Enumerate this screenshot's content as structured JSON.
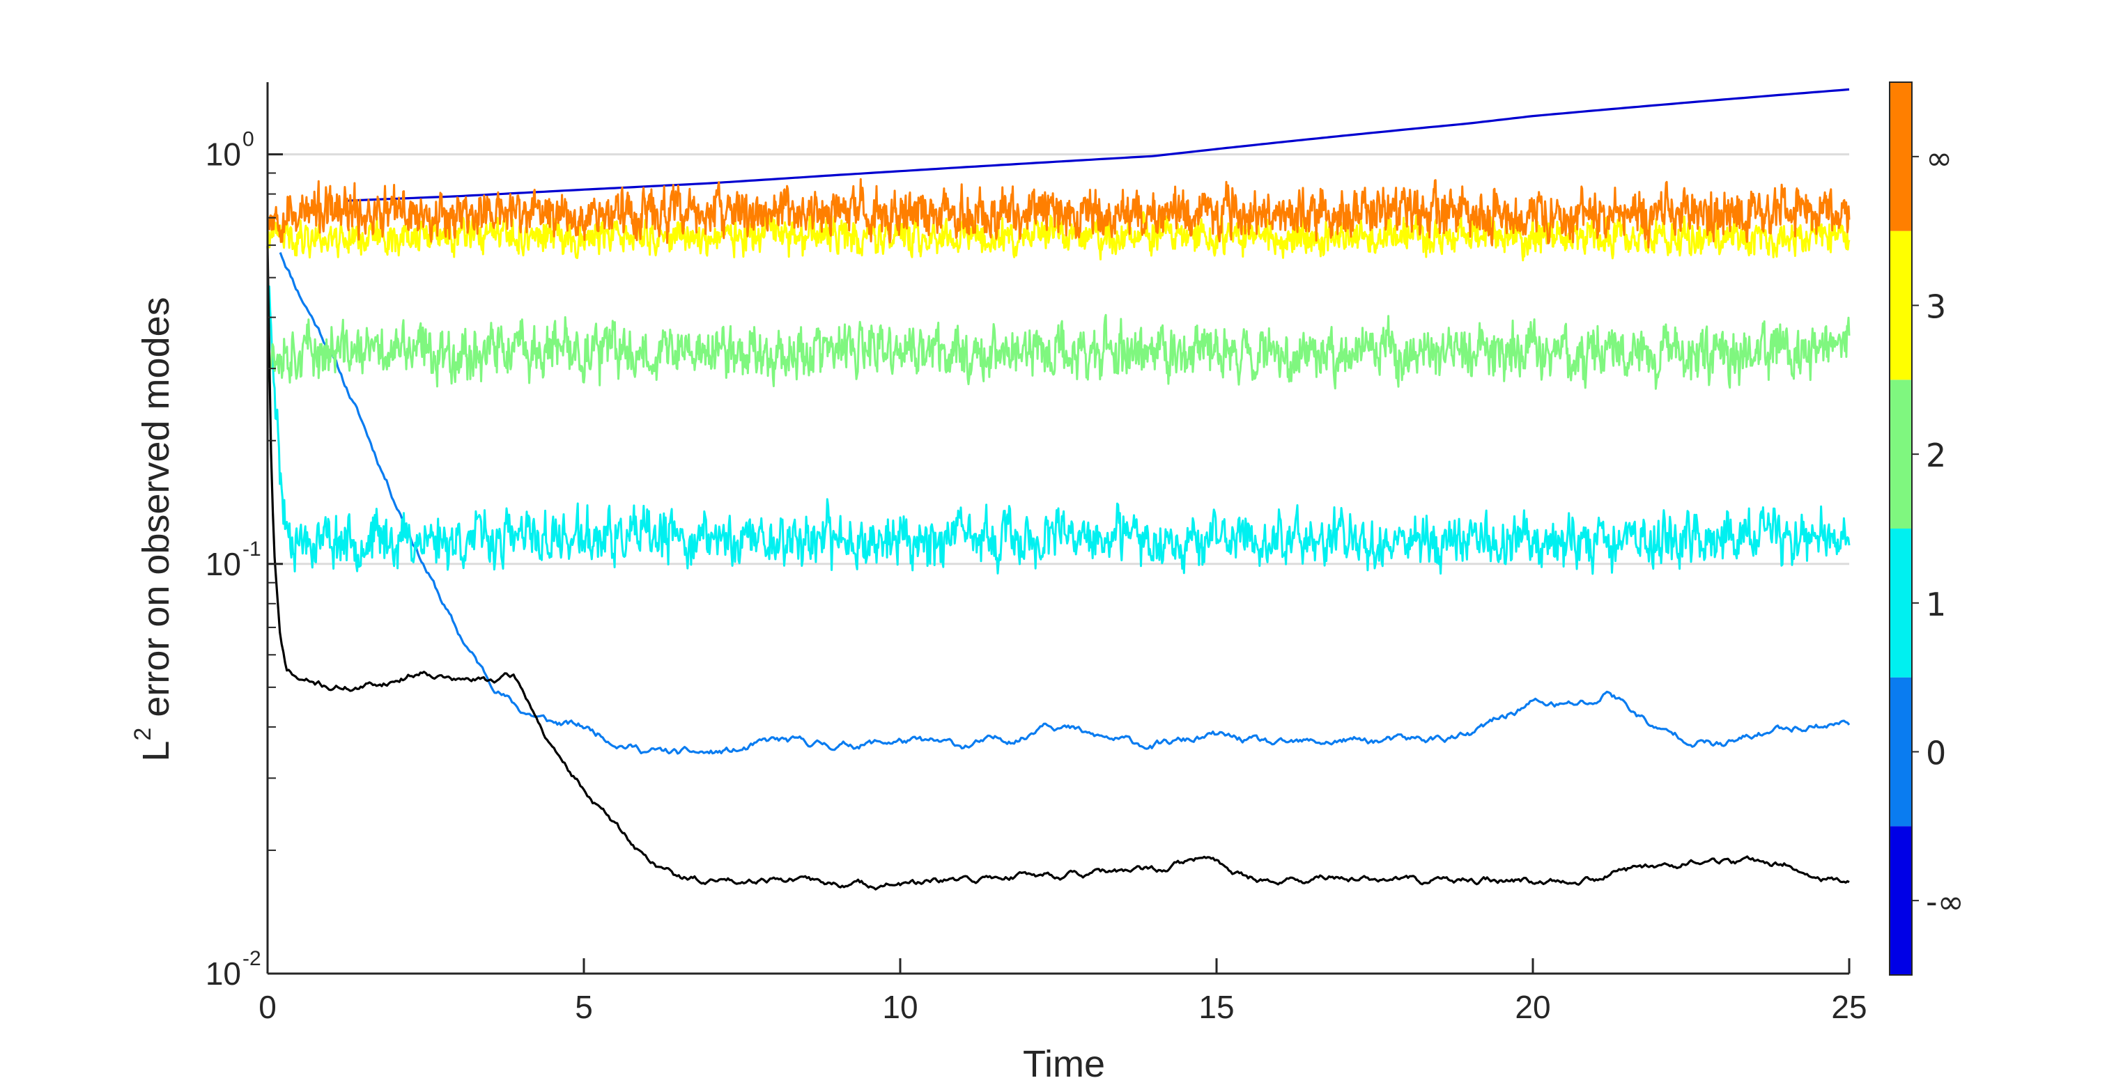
{
  "chart_data": {
    "type": "line",
    "title": "",
    "xlabel": "Time",
    "ylabel": "L² error on observed modes",
    "ylabel_base": "L",
    "ylabel_sup": "2",
    "ylabel_rest": " error on observed modes",
    "x_scale": "linear",
    "y_scale": "log",
    "xlim": [
      0,
      25
    ],
    "ylim": [
      0.01,
      1.5
    ],
    "x_ticks": [
      0,
      5,
      10,
      15,
      20,
      25
    ],
    "x_tick_labels": [
      "0",
      "5",
      "10",
      "15",
      "20",
      "25"
    ],
    "y_ticks": [
      {
        "value": 0.01,
        "base": "10",
        "exp": "-2"
      },
      {
        "value": 0.1,
        "base": "10",
        "exp": "-1"
      },
      {
        "value": 1,
        "base": "10",
        "exp": "0"
      }
    ],
    "grid": "horizontal at decades",
    "colorbar": {
      "position": "right",
      "colors": [
        "#0000e6",
        "#0a7cf0",
        "#00f0f0",
        "#7ff77f",
        "#ffff00",
        "#ff7f00"
      ],
      "labels": [
        "-∞",
        "0",
        "1",
        "2",
        "3",
        "∞"
      ]
    },
    "series": [
      {
        "name": "-∞",
        "color": "#0000d0",
        "kind": "smooth",
        "x": [
          1.2,
          3,
          5,
          7,
          9,
          11,
          13,
          14,
          15,
          16,
          17,
          18,
          19,
          20,
          21,
          22,
          23,
          24,
          25
        ],
        "values": [
          0.77,
          0.79,
          0.82,
          0.85,
          0.89,
          0.93,
          0.97,
          0.99,
          1.03,
          1.07,
          1.11,
          1.15,
          1.19,
          1.24,
          1.28,
          1.32,
          1.36,
          1.4,
          1.44
        ]
      },
      {
        "name": "0",
        "color": "#0a7cf0",
        "kind": "noisy-smooth",
        "x": [
          0.2,
          0.5,
          1,
          1.5,
          2,
          2.5,
          3,
          3.5,
          4,
          4.5,
          5,
          5.5,
          6,
          6.5,
          7,
          7.5,
          8,
          9,
          10,
          11,
          12,
          12.3,
          13,
          14,
          15,
          16,
          17,
          18,
          19,
          19.5,
          20,
          20.5,
          21,
          21.2,
          22,
          23,
          24,
          25
        ],
        "values": [
          0.58,
          0.46,
          0.33,
          0.22,
          0.145,
          0.098,
          0.068,
          0.052,
          0.044,
          0.041,
          0.04,
          0.037,
          0.035,
          0.0345,
          0.0345,
          0.035,
          0.037,
          0.036,
          0.037,
          0.036,
          0.038,
          0.042,
          0.038,
          0.036,
          0.038,
          0.036,
          0.037,
          0.037,
          0.038,
          0.042,
          0.046,
          0.045,
          0.046,
          0.049,
          0.039,
          0.036,
          0.04,
          0.041
        ],
        "noise": 0.035,
        "seed": 11
      },
      {
        "name": "1",
        "color": "#00f0f0",
        "kind": "noisy-flat",
        "x": [
          0,
          0.1,
          0.2,
          0.3,
          0.5,
          25
        ],
        "values": [
          0.5,
          0.32,
          0.16,
          0.125,
          0.115,
          0.115
        ],
        "noise": 0.07,
        "seed": 23,
        "points": 1800
      },
      {
        "name": "2",
        "color": "#7ff77f",
        "kind": "noisy-flat",
        "x": [
          0,
          25
        ],
        "values": [
          0.33,
          0.33
        ],
        "noise": 0.07,
        "seed": 37,
        "points": 2200
      },
      {
        "name": "3",
        "color": "#ffff00",
        "kind": "noisy-flat",
        "x": [
          0,
          25
        ],
        "values": [
          0.63,
          0.63
        ],
        "noise": 0.045,
        "seed": 41,
        "points": 2400
      },
      {
        "name": "∞",
        "color": "#ff7f00",
        "kind": "noisy-flat",
        "x": [
          0,
          25
        ],
        "values": [
          0.72,
          0.72
        ],
        "noise": 0.06,
        "seed": 53,
        "points": 2600
      },
      {
        "name": "black",
        "color": "#000000",
        "kind": "noisy-smooth",
        "x": [
          0,
          0.05,
          0.1,
          0.2,
          0.3,
          0.5,
          1,
          1.5,
          2,
          2.5,
          3,
          3.5,
          3.9,
          4.2,
          4.5,
          5,
          5.5,
          6,
          6.5,
          7,
          8,
          9,
          10,
          11,
          12,
          13,
          14,
          14.8,
          15.5,
          16,
          17,
          18,
          19,
          20,
          21,
          22,
          23,
          24,
          24.5,
          25
        ],
        "values": [
          0.6,
          0.2,
          0.11,
          0.065,
          0.055,
          0.052,
          0.05,
          0.05,
          0.052,
          0.055,
          0.052,
          0.052,
          0.053,
          0.044,
          0.035,
          0.028,
          0.023,
          0.019,
          0.0172,
          0.0168,
          0.0172,
          0.0165,
          0.0165,
          0.0168,
          0.0175,
          0.0175,
          0.0178,
          0.0192,
          0.0172,
          0.0168,
          0.0172,
          0.0168,
          0.0168,
          0.0168,
          0.0172,
          0.0185,
          0.0188,
          0.0185,
          0.017,
          0.0168
        ],
        "noise": 0.03,
        "seed": 71
      }
    ]
  }
}
